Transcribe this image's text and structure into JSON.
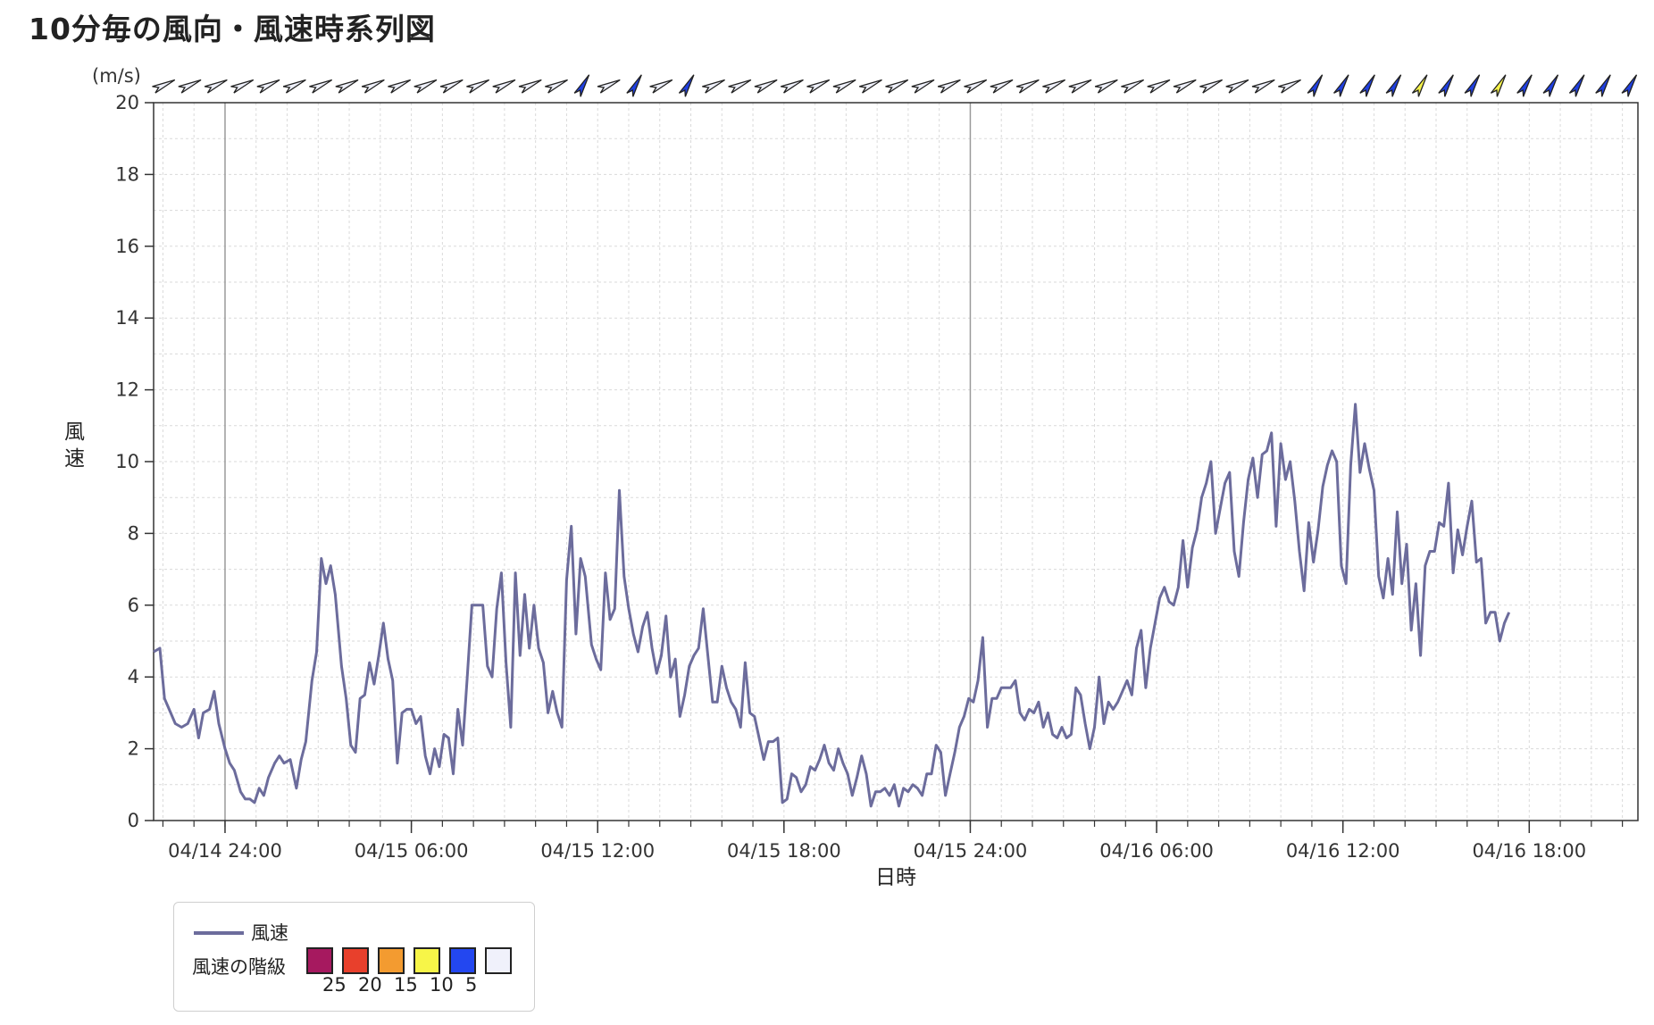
{
  "page": {
    "title": "10分毎の風向・風速時系列図"
  },
  "chart_data": {
    "type": "line",
    "title": "10分毎の風向・風速時系列図",
    "unit_label": "(m/s)",
    "ylabel": "風速",
    "xlabel": "日時",
    "ylim": [
      0,
      20
    ],
    "yticks": [
      0,
      2,
      4,
      6,
      8,
      10,
      12,
      14,
      16,
      18,
      20
    ],
    "x_ticks": [
      {
        "label": "04/14 24:00",
        "hour": 0
      },
      {
        "label": "04/15 06:00",
        "hour": 6
      },
      {
        "label": "04/15 12:00",
        "hour": 12
      },
      {
        "label": "04/15 18:00",
        "hour": 18
      },
      {
        "label": "04/15 24:00",
        "hour": 24
      },
      {
        "label": "04/16 06:00",
        "hour": 30
      },
      {
        "label": "04/16 12:00",
        "hour": 36
      },
      {
        "label": "04/16 18:00",
        "hour": 42
      }
    ],
    "x_range_hours": [
      -2.3,
      45.5
    ],
    "grid": true,
    "series": [
      {
        "name": "風速",
        "color": "#6c6c9c",
        "points": [
          [
            -2.3,
            4.7
          ],
          [
            -2.1,
            4.8
          ],
          [
            -1.95,
            3.4
          ],
          [
            -1.8,
            3.1
          ],
          [
            -1.6,
            2.7
          ],
          [
            -1.4,
            2.6
          ],
          [
            -1.2,
            2.7
          ],
          [
            -1.0,
            3.1
          ],
          [
            -0.85,
            2.3
          ],
          [
            -0.7,
            3.0
          ],
          [
            -0.5,
            3.1
          ],
          [
            -0.35,
            3.6
          ],
          [
            -0.2,
            2.7
          ],
          [
            0.0,
            2.0
          ],
          [
            0.15,
            1.6
          ],
          [
            0.3,
            1.4
          ],
          [
            0.5,
            0.8
          ],
          [
            0.65,
            0.6
          ],
          [
            0.8,
            0.6
          ],
          [
            0.95,
            0.5
          ],
          [
            1.1,
            0.9
          ],
          [
            1.25,
            0.7
          ],
          [
            1.4,
            1.2
          ],
          [
            1.6,
            1.6
          ],
          [
            1.75,
            1.8
          ],
          [
            1.9,
            1.6
          ],
          [
            2.1,
            1.7
          ],
          [
            2.3,
            0.9
          ],
          [
            2.45,
            1.7
          ],
          [
            2.6,
            2.2
          ],
          [
            2.8,
            3.9
          ],
          [
            2.95,
            4.7
          ],
          [
            3.1,
            7.3
          ],
          [
            3.25,
            6.6
          ],
          [
            3.4,
            7.1
          ],
          [
            3.55,
            6.3
          ],
          [
            3.75,
            4.3
          ],
          [
            3.9,
            3.4
          ],
          [
            4.05,
            2.1
          ],
          [
            4.2,
            1.9
          ],
          [
            4.35,
            3.4
          ],
          [
            4.5,
            3.5
          ],
          [
            4.65,
            4.4
          ],
          [
            4.8,
            3.8
          ],
          [
            4.95,
            4.6
          ],
          [
            5.1,
            5.5
          ],
          [
            5.25,
            4.5
          ],
          [
            5.4,
            3.9
          ],
          [
            5.55,
            1.6
          ],
          [
            5.7,
            3.0
          ],
          [
            5.85,
            3.1
          ],
          [
            6.0,
            3.1
          ],
          [
            6.15,
            2.7
          ],
          [
            6.3,
            2.9
          ],
          [
            6.45,
            1.8
          ],
          [
            6.6,
            1.3
          ],
          [
            6.75,
            2.0
          ],
          [
            6.9,
            1.5
          ],
          [
            7.05,
            2.4
          ],
          [
            7.2,
            2.3
          ],
          [
            7.35,
            1.3
          ],
          [
            7.5,
            3.1
          ],
          [
            7.65,
            2.1
          ],
          [
            7.8,
            4.0
          ],
          [
            7.95,
            6.0
          ],
          [
            8.1,
            6.0
          ],
          [
            8.3,
            6.0
          ],
          [
            8.45,
            4.3
          ],
          [
            8.6,
            4.0
          ],
          [
            8.75,
            5.9
          ],
          [
            8.9,
            6.9
          ],
          [
            9.05,
            4.4
          ],
          [
            9.2,
            2.6
          ],
          [
            9.35,
            6.9
          ],
          [
            9.5,
            4.6
          ],
          [
            9.65,
            6.3
          ],
          [
            9.8,
            4.8
          ],
          [
            9.95,
            6.0
          ],
          [
            10.1,
            4.8
          ],
          [
            10.25,
            4.4
          ],
          [
            10.4,
            3.0
          ],
          [
            10.55,
            3.6
          ],
          [
            10.7,
            3.0
          ],
          [
            10.85,
            2.6
          ],
          [
            11.0,
            6.7
          ],
          [
            11.15,
            8.2
          ],
          [
            11.3,
            5.2
          ],
          [
            11.45,
            7.3
          ],
          [
            11.6,
            6.8
          ],
          [
            11.8,
            4.9
          ],
          [
            11.95,
            4.5
          ],
          [
            12.1,
            4.2
          ],
          [
            12.25,
            6.9
          ],
          [
            12.4,
            5.6
          ],
          [
            12.55,
            5.9
          ],
          [
            12.7,
            9.2
          ],
          [
            12.85,
            6.8
          ],
          [
            13.0,
            5.9
          ],
          [
            13.15,
            5.2
          ],
          [
            13.3,
            4.7
          ],
          [
            13.45,
            5.4
          ],
          [
            13.6,
            5.8
          ],
          [
            13.75,
            4.8
          ],
          [
            13.9,
            4.1
          ],
          [
            14.05,
            4.6
          ],
          [
            14.2,
            5.7
          ],
          [
            14.35,
            4.0
          ],
          [
            14.5,
            4.5
          ],
          [
            14.65,
            2.9
          ],
          [
            14.8,
            3.5
          ],
          [
            14.95,
            4.3
          ],
          [
            15.1,
            4.6
          ],
          [
            15.25,
            4.8
          ],
          [
            15.4,
            5.9
          ],
          [
            15.55,
            4.6
          ],
          [
            15.7,
            3.3
          ],
          [
            15.85,
            3.3
          ],
          [
            16.0,
            4.3
          ],
          [
            16.15,
            3.7
          ],
          [
            16.3,
            3.3
          ],
          [
            16.45,
            3.1
          ],
          [
            16.6,
            2.6
          ],
          [
            16.75,
            4.4
          ],
          [
            16.9,
            3.0
          ],
          [
            17.05,
            2.9
          ],
          [
            17.2,
            2.3
          ],
          [
            17.35,
            1.7
          ],
          [
            17.5,
            2.2
          ],
          [
            17.65,
            2.2
          ],
          [
            17.8,
            2.3
          ],
          [
            17.95,
            0.5
          ],
          [
            18.1,
            0.6
          ],
          [
            18.25,
            1.3
          ],
          [
            18.4,
            1.2
          ],
          [
            18.55,
            0.8
          ],
          [
            18.7,
            1.0
          ],
          [
            18.85,
            1.5
          ],
          [
            19.0,
            1.4
          ],
          [
            19.15,
            1.7
          ],
          [
            19.3,
            2.1
          ],
          [
            19.45,
            1.6
          ],
          [
            19.6,
            1.4
          ],
          [
            19.75,
            2.0
          ],
          [
            19.9,
            1.6
          ],
          [
            20.05,
            1.3
          ],
          [
            20.2,
            0.7
          ],
          [
            20.35,
            1.2
          ],
          [
            20.5,
            1.8
          ],
          [
            20.65,
            1.3
          ],
          [
            20.8,
            0.4
          ],
          [
            20.95,
            0.8
          ],
          [
            21.1,
            0.8
          ],
          [
            21.25,
            0.9
          ],
          [
            21.4,
            0.7
          ],
          [
            21.55,
            1.0
          ],
          [
            21.7,
            0.4
          ],
          [
            21.85,
            0.9
          ],
          [
            22.0,
            0.8
          ],
          [
            22.15,
            1.0
          ],
          [
            22.3,
            0.9
          ],
          [
            22.45,
            0.7
          ],
          [
            22.6,
            1.3
          ],
          [
            22.75,
            1.3
          ],
          [
            22.9,
            2.1
          ],
          [
            23.05,
            1.9
          ],
          [
            23.2,
            0.7
          ],
          [
            23.35,
            1.3
          ],
          [
            23.5,
            1.9
          ],
          [
            23.65,
            2.6
          ],
          [
            23.8,
            2.9
          ],
          [
            23.95,
            3.4
          ],
          [
            24.1,
            3.3
          ],
          [
            24.25,
            3.9
          ],
          [
            24.4,
            5.1
          ],
          [
            24.55,
            2.6
          ],
          [
            24.7,
            3.4
          ],
          [
            24.85,
            3.4
          ],
          [
            25.0,
            3.7
          ],
          [
            25.15,
            3.7
          ],
          [
            25.3,
            3.7
          ],
          [
            25.45,
            3.9
          ],
          [
            25.6,
            3.0
          ],
          [
            25.75,
            2.8
          ],
          [
            25.9,
            3.1
          ],
          [
            26.05,
            3.0
          ],
          [
            26.2,
            3.3
          ],
          [
            26.35,
            2.6
          ],
          [
            26.5,
            3.0
          ],
          [
            26.65,
            2.4
          ],
          [
            26.8,
            2.3
          ],
          [
            26.95,
            2.6
          ],
          [
            27.1,
            2.3
          ],
          [
            27.25,
            2.4
          ],
          [
            27.4,
            3.7
          ],
          [
            27.55,
            3.5
          ],
          [
            27.7,
            2.7
          ],
          [
            27.85,
            2.0
          ],
          [
            28.0,
            2.6
          ],
          [
            28.15,
            4.0
          ],
          [
            28.3,
            2.7
          ],
          [
            28.45,
            3.3
          ],
          [
            28.6,
            3.1
          ],
          [
            28.75,
            3.3
          ],
          [
            28.9,
            3.6
          ],
          [
            29.05,
            3.9
          ],
          [
            29.2,
            3.5
          ],
          [
            29.35,
            4.8
          ],
          [
            29.5,
            5.3
          ],
          [
            29.65,
            3.7
          ],
          [
            29.8,
            4.8
          ],
          [
            29.95,
            5.5
          ],
          [
            30.1,
            6.2
          ],
          [
            30.25,
            6.5
          ],
          [
            30.4,
            6.1
          ],
          [
            30.55,
            6.0
          ],
          [
            30.7,
            6.5
          ],
          [
            30.85,
            7.8
          ],
          [
            31.0,
            6.5
          ],
          [
            31.15,
            7.6
          ],
          [
            31.3,
            8.1
          ],
          [
            31.45,
            9.0
          ],
          [
            31.6,
            9.4
          ],
          [
            31.75,
            10.0
          ],
          [
            31.9,
            8.0
          ],
          [
            32.05,
            8.7
          ],
          [
            32.2,
            9.4
          ],
          [
            32.35,
            9.7
          ],
          [
            32.5,
            7.5
          ],
          [
            32.65,
            6.8
          ],
          [
            32.8,
            8.3
          ],
          [
            32.95,
            9.5
          ],
          [
            33.1,
            10.1
          ],
          [
            33.25,
            9.0
          ],
          [
            33.4,
            10.2
          ],
          [
            33.55,
            10.3
          ],
          [
            33.7,
            10.8
          ],
          [
            33.85,
            8.2
          ],
          [
            34.0,
            10.5
          ],
          [
            34.15,
            9.5
          ],
          [
            34.3,
            10.0
          ],
          [
            34.45,
            8.9
          ],
          [
            34.6,
            7.5
          ],
          [
            34.75,
            6.4
          ],
          [
            34.9,
            8.3
          ],
          [
            35.05,
            7.2
          ],
          [
            35.2,
            8.1
          ],
          [
            35.35,
            9.3
          ],
          [
            35.5,
            9.9
          ],
          [
            35.65,
            10.3
          ],
          [
            35.8,
            10.0
          ],
          [
            35.95,
            7.1
          ],
          [
            36.1,
            6.6
          ],
          [
            36.25,
            9.9
          ],
          [
            36.4,
            11.6
          ],
          [
            36.55,
            9.7
          ],
          [
            36.7,
            10.5
          ],
          [
            36.85,
            9.8
          ],
          [
            37.0,
            9.2
          ],
          [
            37.15,
            6.8
          ],
          [
            37.3,
            6.2
          ],
          [
            37.45,
            7.3
          ],
          [
            37.6,
            6.3
          ],
          [
            37.75,
            8.6
          ],
          [
            37.9,
            6.6
          ],
          [
            38.05,
            7.7
          ],
          [
            38.2,
            5.3
          ],
          [
            38.35,
            6.6
          ],
          [
            38.5,
            4.6
          ],
          [
            38.65,
            7.1
          ],
          [
            38.8,
            7.5
          ],
          [
            38.95,
            7.5
          ],
          [
            39.1,
            8.3
          ],
          [
            39.25,
            8.2
          ],
          [
            39.4,
            9.4
          ],
          [
            39.55,
            6.9
          ],
          [
            39.7,
            8.1
          ],
          [
            39.85,
            7.4
          ],
          [
            40.0,
            8.2
          ],
          [
            40.15,
            8.9
          ],
          [
            40.3,
            7.2
          ],
          [
            40.45,
            7.3
          ],
          [
            40.6,
            5.5
          ],
          [
            40.75,
            5.8
          ],
          [
            40.9,
            5.8
          ],
          [
            41.05,
            5.0
          ],
          [
            41.2,
            5.5
          ],
          [
            41.35,
            5.8
          ]
        ]
      }
    ],
    "direction_colors": [
      "white",
      "white",
      "white",
      "white",
      "white",
      "white",
      "white",
      "white",
      "white",
      "white",
      "white",
      "white",
      "white",
      "white",
      "white",
      "white",
      "blue",
      "white",
      "blue",
      "white",
      "blue",
      "white",
      "white",
      "white",
      "white",
      "white",
      "white",
      "white",
      "white",
      "white",
      "white",
      "white",
      "white",
      "white",
      "white",
      "white",
      "white",
      "white",
      "white",
      "white",
      "white",
      "white",
      "white",
      "white",
      "blue",
      "blue",
      "blue",
      "blue",
      "yellow",
      "blue",
      "blue",
      "yellow",
      "blue",
      "blue",
      "blue",
      "blue",
      "blue"
    ],
    "legend": {
      "series_label": "風速",
      "scale_label": "風速の階級",
      "classes": [
        {
          "label": "25",
          "color": "#a6195f"
        },
        {
          "label": "20",
          "color": "#e8402c"
        },
        {
          "label": "15",
          "color": "#f39b30"
        },
        {
          "label": "10",
          "color": "#f7f548"
        },
        {
          "label": "5",
          "color": "#2347f0"
        },
        {
          "label": "",
          "color": "#f0f1fb"
        }
      ]
    }
  }
}
